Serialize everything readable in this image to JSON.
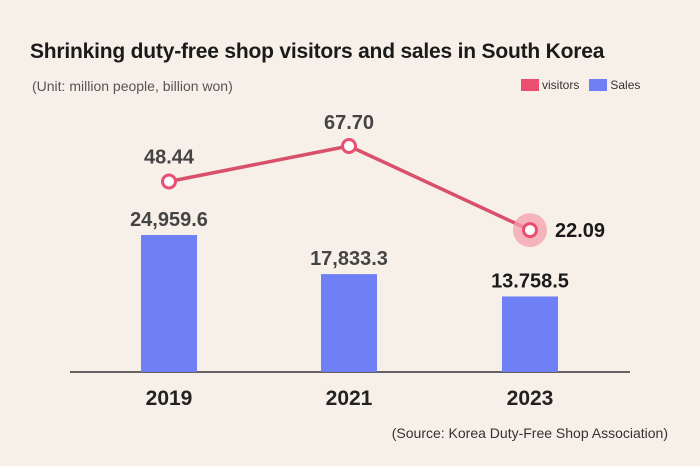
{
  "chart_data": {
    "type": "bar",
    "title": "Shrinking duty-free shop visitors and sales in South Korea",
    "subtitle": "(Unit: million people, billion won)",
    "categories": [
      "2019",
      "2021",
      "2023"
    ],
    "series": [
      {
        "name": "Sales",
        "type": "bar",
        "values": [
          24959.6,
          17833.3,
          13758.5
        ],
        "labels": [
          "24,959.6",
          "17,833.3",
          "13.758.5"
        ],
        "color": "#6f7ff5"
      },
      {
        "name": "visitors",
        "type": "line",
        "values": [
          48.44,
          67.7,
          22.09
        ],
        "labels": [
          "48.44",
          "67.70",
          "22.09"
        ],
        "color": "#d9506b"
      }
    ],
    "legend": [
      {
        "name": "visitors",
        "color": "#ea4f72"
      },
      {
        "name": "Sales",
        "color": "#6f7ff5"
      }
    ],
    "legend_position": "top-right",
    "grid": false,
    "source": "(Source: Korea Duty-Free Shop Association)"
  }
}
